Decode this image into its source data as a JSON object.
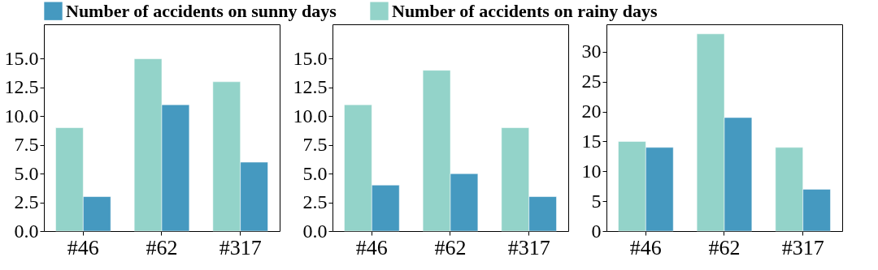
{
  "chart_data": [
    {
      "type": "bar",
      "categories": [
        "#46",
        "#62",
        "#317"
      ],
      "series": [
        {
          "name": "Number of accidents on rainy days",
          "color": "#93d3c9",
          "values": [
            9,
            15,
            13
          ]
        },
        {
          "name": "Number of accidents on sunny days",
          "color": "#4599c0",
          "values": [
            3,
            11,
            6
          ]
        }
      ],
      "ylim": [
        0,
        18
      ],
      "yticks": [
        {
          "value": 0,
          "label": "0.0"
        },
        {
          "value": 2.5,
          "label": "2.5"
        },
        {
          "value": 5,
          "label": "5.0"
        },
        {
          "value": 7.5,
          "label": "7.5"
        },
        {
          "value": 10,
          "label": "10.0"
        },
        {
          "value": 12.5,
          "label": "12.5"
        },
        {
          "value": 15,
          "label": "15.0"
        }
      ],
      "legend": "top",
      "grid": false
    },
    {
      "type": "bar",
      "categories": [
        "#46",
        "#62",
        "#317"
      ],
      "series": [
        {
          "name": "Number of accidents on rainy days",
          "color": "#93d3c9",
          "values": [
            11,
            14,
            9
          ]
        },
        {
          "name": "Number of accidents on sunny days",
          "color": "#4599c0",
          "values": [
            4,
            5,
            3
          ]
        }
      ],
      "ylim": [
        0,
        18
      ],
      "yticks": [
        {
          "value": 0,
          "label": "0.0"
        },
        {
          "value": 2.5,
          "label": "2.5"
        },
        {
          "value": 5,
          "label": "5.0"
        },
        {
          "value": 7.5,
          "label": "7.5"
        },
        {
          "value": 10,
          "label": "10.0"
        },
        {
          "value": 12.5,
          "label": "12.5"
        },
        {
          "value": 15,
          "label": "15.0"
        }
      ],
      "legend": "top",
      "grid": false
    },
    {
      "type": "bar",
      "categories": [
        "#46",
        "#62",
        "#317"
      ],
      "series": [
        {
          "name": "Number of accidents on rainy days",
          "color": "#93d3c9",
          "values": [
            15,
            33,
            14
          ]
        },
        {
          "name": "Number of accidents on sunny days",
          "color": "#4599c0",
          "values": [
            14,
            19,
            7
          ]
        }
      ],
      "ylim": [
        0,
        34.6
      ],
      "yticks": [
        0,
        5,
        10,
        15,
        20,
        25,
        30
      ],
      "legend": "top",
      "grid": false
    }
  ]
}
